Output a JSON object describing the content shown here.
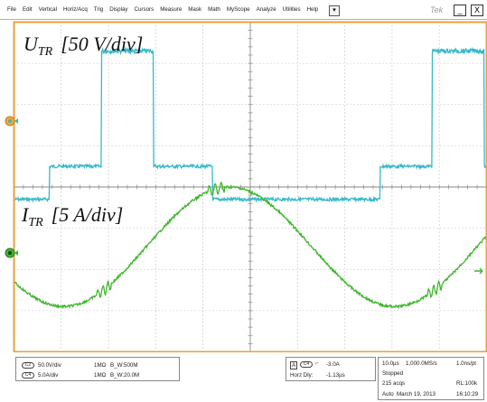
{
  "menubar": {
    "items": [
      "File",
      "Edit",
      "Vertical",
      "Horiz/Acq",
      "Trig",
      "Display",
      "Cursors",
      "Measure",
      "Mask",
      "Math",
      "MyScope",
      "Analyze",
      "Utilities",
      "Help"
    ],
    "scroll_icon": "dropdown-arrow-icon",
    "brand": "Tek",
    "minimize_label": "_",
    "close_label": "X"
  },
  "labels": {
    "voltage": {
      "main": "U",
      "sub": "TR",
      "scale": "[50 V/div]"
    },
    "current": {
      "main": "I",
      "sub": "TR",
      "scale": "[5 A/div]"
    }
  },
  "colors": {
    "graticule_border": "#e8a23c",
    "grid": "#8a8a8a",
    "voltage_trace": "#36b9c9",
    "current_trace": "#3fb62d"
  },
  "channels": [
    {
      "badge": "C2",
      "scale": "50.0V/div",
      "impedance": "1MΩ",
      "bw": "B_W:500M"
    },
    {
      "badge": "C4",
      "scale": "5.0A/div",
      "impedance": "1MΩ",
      "bw": "B_W:20.0M"
    }
  ],
  "trigger": {
    "mode": "A",
    "source": "C4",
    "slope_icon": "rising-edge-icon",
    "level": "-3.0A",
    "horz_delay_label": "Horz Dly:",
    "horz_delay": "-1.13µs"
  },
  "acquisition": {
    "timebase": "10.0µs",
    "sample_rate": "1,000.0MS/s",
    "resolution": "1.0ns/pt",
    "state": "Stopped",
    "acqs": "215 acqs",
    "record_length": "RL:100k",
    "mode": "Auto",
    "date": "March 19, 2013",
    "time": "16:10:29"
  },
  "waveform": {
    "voltage_levels_div": [
      -1.9,
      -1.1,
      1.7
    ],
    "current_amplitude_div": 1.45,
    "period_us": 70
  }
}
